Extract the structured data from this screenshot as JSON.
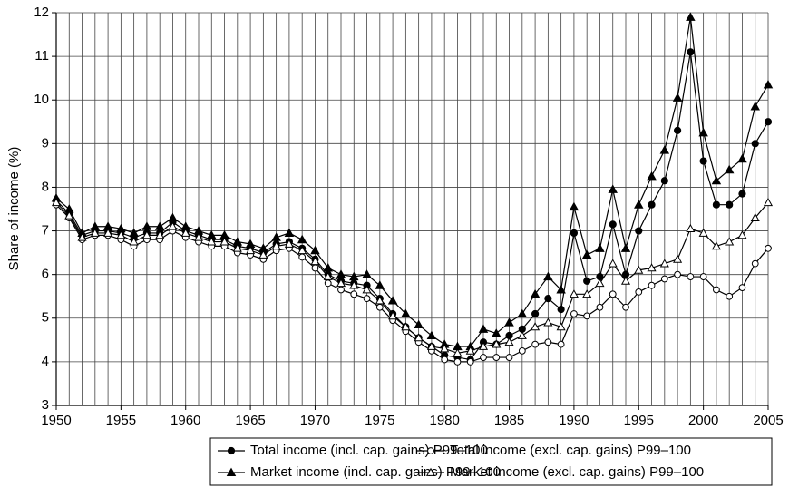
{
  "chart_data": {
    "type": "line",
    "y_label": "Share of income (%)",
    "x": [
      1950,
      1951,
      1952,
      1953,
      1954,
      1955,
      1956,
      1957,
      1958,
      1959,
      1960,
      1961,
      1962,
      1963,
      1964,
      1965,
      1966,
      1967,
      1968,
      1969,
      1970,
      1971,
      1972,
      1973,
      1974,
      1975,
      1976,
      1977,
      1978,
      1979,
      1980,
      1981,
      1982,
      1983,
      1984,
      1985,
      1986,
      1987,
      1988,
      1989,
      1990,
      1991,
      1992,
      1993,
      1994,
      1995,
      1996,
      1997,
      1998,
      1999,
      2000,
      2001,
      2002,
      2003,
      2004,
      2005
    ],
    "xlim": [
      1950,
      2005
    ],
    "xticks": [
      1950,
      1955,
      1960,
      1965,
      1970,
      1975,
      1980,
      1985,
      1990,
      1995,
      2000,
      2005
    ],
    "ylim": [
      3,
      12
    ],
    "yticks": [
      3,
      4,
      5,
      6,
      7,
      8,
      9,
      10,
      11,
      12
    ],
    "grid": true,
    "legend": "bottom",
    "series": [
      {
        "name": "Total income (incl. cap. gains) P99–100",
        "color": "#000000",
        "marker": "filled-circle",
        "values": [
          7.7,
          7.4,
          6.9,
          7.0,
          7.0,
          6.95,
          6.85,
          6.95,
          6.95,
          7.2,
          7.0,
          6.9,
          6.8,
          6.8,
          6.65,
          6.6,
          6.5,
          6.7,
          6.75,
          6.6,
          6.35,
          6.0,
          5.85,
          5.8,
          5.75,
          5.45,
          5.1,
          4.8,
          4.55,
          4.35,
          4.15,
          4.1,
          4.05,
          4.45,
          4.4,
          4.6,
          4.75,
          5.1,
          5.45,
          5.2,
          6.95,
          5.85,
          5.95,
          7.15,
          6.0,
          7.0,
          7.6,
          8.15,
          9.3,
          11.1,
          8.6,
          7.6,
          7.6,
          7.85,
          9.0,
          9.5
        ]
      },
      {
        "name": "Total income (excl. cap. gains) P99–100",
        "color": "#000000",
        "marker": "open-circle",
        "values": [
          7.6,
          7.3,
          6.8,
          6.9,
          6.9,
          6.8,
          6.65,
          6.8,
          6.8,
          7.0,
          6.85,
          6.75,
          6.65,
          6.65,
          6.5,
          6.45,
          6.35,
          6.55,
          6.6,
          6.4,
          6.15,
          5.8,
          5.65,
          5.55,
          5.45,
          5.25,
          4.95,
          4.7,
          4.45,
          4.25,
          4.05,
          4.0,
          4.0,
          4.1,
          4.1,
          4.1,
          4.25,
          4.4,
          4.45,
          4.4,
          5.1,
          5.05,
          5.25,
          5.55,
          5.25,
          5.6,
          5.75,
          5.9,
          6.0,
          5.95,
          5.95,
          5.65,
          5.5,
          5.7,
          6.25,
          6.6
        ]
      },
      {
        "name": "Market income (incl. cap. gains) P99–100",
        "color": "#000000",
        "marker": "filled-triangle",
        "values": [
          7.75,
          7.5,
          6.95,
          7.1,
          7.1,
          7.05,
          6.95,
          7.1,
          7.1,
          7.3,
          7.1,
          7.0,
          6.9,
          6.9,
          6.75,
          6.7,
          6.6,
          6.85,
          6.95,
          6.8,
          6.55,
          6.15,
          6.0,
          5.95,
          6.0,
          5.75,
          5.4,
          5.1,
          4.85,
          4.6,
          4.4,
          4.35,
          4.35,
          4.75,
          4.65,
          4.9,
          5.1,
          5.55,
          5.95,
          5.65,
          7.55,
          6.45,
          6.6,
          7.95,
          6.6,
          7.6,
          8.25,
          8.85,
          10.05,
          11.9,
          9.25,
          8.15,
          8.4,
          8.65,
          9.85,
          10.35
        ]
      },
      {
        "name": "Market income (excl. cap. gains) P99–100",
        "color": "#000000",
        "marker": "open-triangle",
        "values": [
          7.65,
          7.35,
          6.85,
          6.95,
          6.95,
          6.9,
          6.75,
          6.9,
          6.9,
          7.1,
          6.95,
          6.85,
          6.75,
          6.75,
          6.6,
          6.55,
          6.45,
          6.65,
          6.7,
          6.55,
          6.3,
          5.95,
          5.8,
          5.75,
          5.65,
          5.4,
          5.05,
          4.8,
          4.55,
          4.35,
          4.3,
          4.2,
          4.25,
          4.35,
          4.4,
          4.45,
          4.6,
          4.8,
          4.9,
          4.8,
          5.55,
          5.55,
          5.8,
          6.25,
          5.85,
          6.1,
          6.15,
          6.25,
          6.35,
          7.05,
          6.95,
          6.65,
          6.75,
          6.9,
          7.3,
          7.65
        ]
      }
    ]
  }
}
